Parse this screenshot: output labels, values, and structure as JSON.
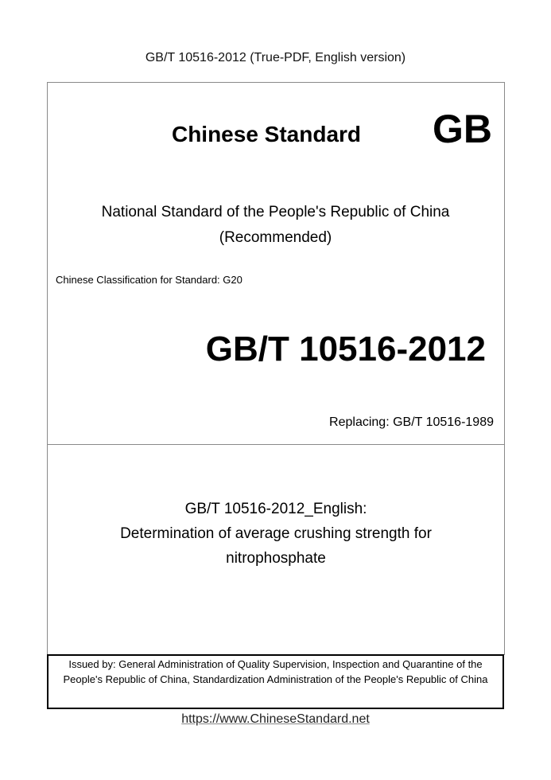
{
  "header": "GB/T 10516-2012 (True-PDF, English version)",
  "cover": {
    "chinese_standard": "Chinese Standard",
    "gb_mark": "GB",
    "national_line1": "National Standard of the People's Republic of China",
    "national_line2": "(Recommended)",
    "classification": "Chinese Classification for Standard: G20",
    "standard_number": "GB/T 10516-2012",
    "replacing": "Replacing: GB/T 10516-1989",
    "title_line1": "GB/T 10516-2012_English:",
    "title_line2": "Determination of average crushing strength for",
    "title_line3": "nitrophosphate",
    "issued_by": "Issued by: General Administration of Quality Supervision, Inspection and Quarantine of the People's Republic of China, Standardization Administration of the People's Republic of China"
  },
  "footer_link": "https://www.ChineseStandard.net"
}
